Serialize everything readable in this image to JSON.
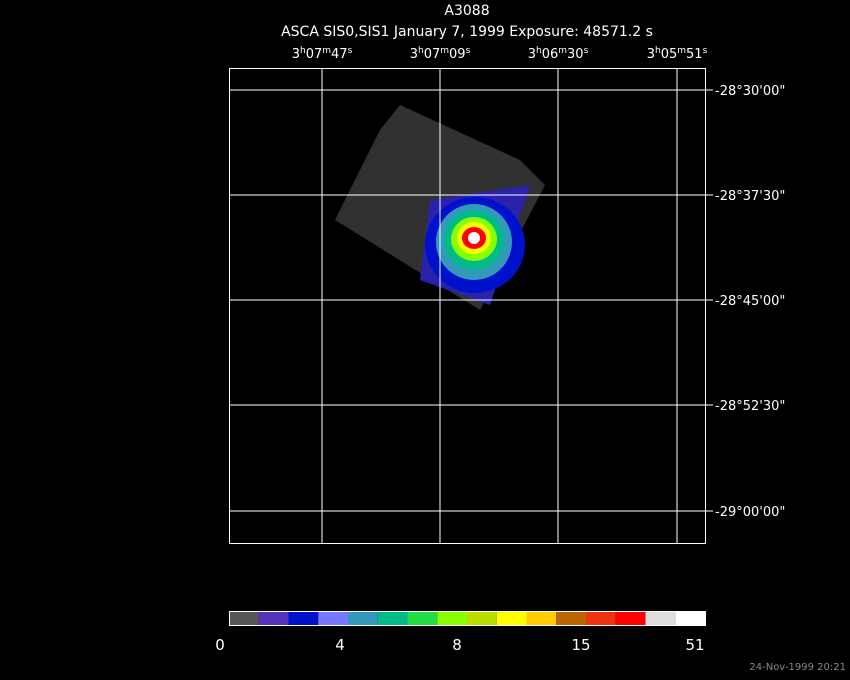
{
  "header": {
    "title": "A3088",
    "subtitle": "ASCA SIS0,SIS1 January 7, 1999 Exposure: 48571.2 s"
  },
  "ra_labels": [
    [
      "3",
      "h",
      "07",
      "m",
      "47",
      "s"
    ],
    [
      "3",
      "h",
      "07",
      "m",
      "09",
      "s"
    ],
    [
      "3",
      "h",
      "06",
      "m",
      "30",
      "s"
    ],
    [
      "3",
      "h",
      "05",
      "m",
      "51",
      "s"
    ]
  ],
  "dec_labels": [
    "-28°30'00\"",
    "-28°37'30\"",
    "-28°45'00\"",
    "-28°52'30\"",
    "-29°00'00\""
  ],
  "colorbar": {
    "colors": [
      "#555555",
      "#5533bb",
      "#0011cc",
      "#7777ff",
      "#3399bb",
      "#00bb88",
      "#22dd44",
      "#88ff00",
      "#bbdd00",
      "#ffff00",
      "#ffcc00",
      "#bb6600",
      "#ee3311",
      "#ff0000",
      "#dddddd",
      "#ffffff"
    ],
    "labels": [
      0,
      4,
      8,
      15,
      51
    ]
  },
  "footer": {
    "timestamp": "24-Nov-1999 20:21"
  }
}
